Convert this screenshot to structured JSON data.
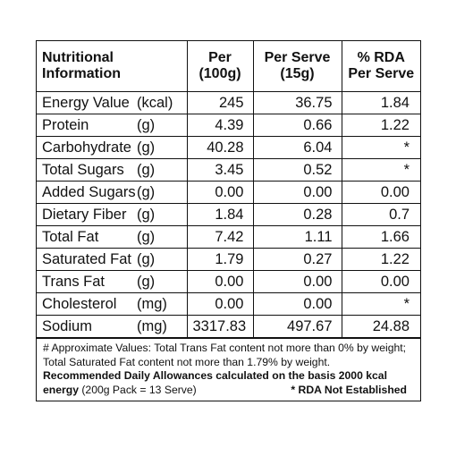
{
  "table": {
    "header": [
      "Nutritional\nInformation",
      "Per\n(100g)",
      "Per Serve\n(15g)",
      "% RDA\nPer Serve"
    ],
    "rows": [
      [
        "Energy Value",
        "(kcal)",
        "245",
        "36.75",
        "1.84"
      ],
      [
        "Protein",
        "(g)",
        "4.39",
        "0.66",
        "1.22"
      ],
      [
        "Carbohydrate",
        "(g)",
        "40.28",
        "6.04",
        "*"
      ],
      [
        "Total Sugars",
        "(g)",
        "3.45",
        "0.52",
        "*"
      ],
      [
        "Added Sugars",
        "(g)",
        "0.00",
        "0.00",
        "0.00"
      ],
      [
        "Dietary Fiber",
        "(g)",
        "1.84",
        "0.28",
        "0.7"
      ],
      [
        "Total Fat",
        "(g)",
        "7.42",
        "1.11",
        "1.66"
      ],
      [
        "Saturated Fat",
        "(g)",
        "1.79",
        "0.27",
        "1.22"
      ],
      [
        "Trans Fat",
        "(g)",
        "0.00",
        "0.00",
        "0.00"
      ],
      [
        "Cholesterol",
        "(mg)",
        "0.00",
        "0.00",
        "*"
      ],
      [
        "Sodium",
        "(mg)",
        "3317.83",
        "497.67",
        "24.88"
      ]
    ]
  },
  "footer": {
    "note": "# Approximate Values: Total Trans Fat content not more than 0% by weight; Total Saturated Fat content not more than 1.79% by weight.",
    "rda_basis": "Recommended Daily Allowances calculated on the basis 2000 kcal energy",
    "pack": "(200g Pack = 13 Serve)",
    "rda_not_established": "* RDA Not Established"
  }
}
